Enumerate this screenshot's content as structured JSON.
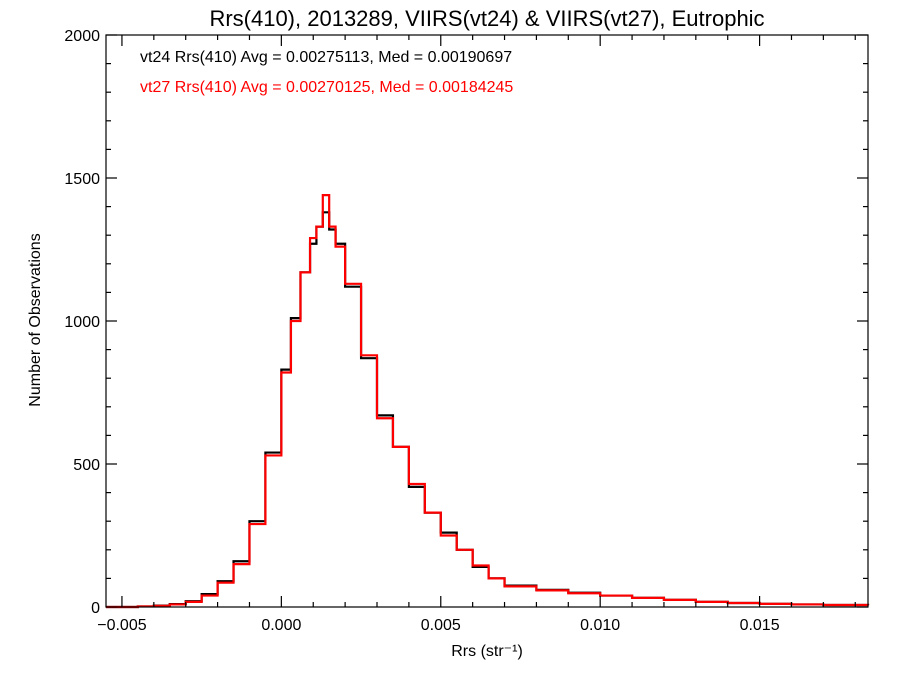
{
  "chart_data": {
    "type": "line",
    "title": "Rrs(410), 2013289, VIIRS(vt24) & VIIRS(vt27), Eutrophic",
    "xlabel": "Rrs (str⁻¹)",
    "ylabel": "Number of Observations",
    "xlim": [
      -0.0055,
      0.0184
    ],
    "ylim": [
      0,
      2000
    ],
    "xticks": [
      -0.005,
      0.0,
      0.005,
      0.01,
      0.015
    ],
    "xtick_labels": [
      "−0.005",
      "0.000",
      "0.005",
      "0.010",
      "0.015"
    ],
    "yticks": [
      0,
      500,
      1000,
      1500,
      2000
    ],
    "ytick_labels": [
      "0",
      "500",
      "1000",
      "1500",
      "2000"
    ],
    "grid": false,
    "x": [
      -0.0055,
      -0.005,
      -0.0045,
      -0.004,
      -0.0035,
      -0.003,
      -0.0025,
      -0.002,
      -0.0015,
      -0.001,
      -0.0005,
      0.0,
      0.0003,
      0.0006,
      0.0009,
      0.0011,
      0.0013,
      0.0015,
      0.0017,
      0.002,
      0.0025,
      0.003,
      0.0035,
      0.004,
      0.0045,
      0.005,
      0.0055,
      0.006,
      0.0065,
      0.007,
      0.008,
      0.009,
      0.01,
      0.011,
      0.012,
      0.013,
      0.014,
      0.015,
      0.016,
      0.017,
      0.0184
    ],
    "series": [
      {
        "name": "vt24",
        "color": "#000000",
        "values": [
          0,
          0,
          2,
          5,
          10,
          20,
          45,
          90,
          160,
          300,
          540,
          830,
          1010,
          1170,
          1270,
          1330,
          1380,
          1320,
          1270,
          1120,
          870,
          670,
          560,
          420,
          330,
          260,
          200,
          140,
          100,
          75,
          60,
          50,
          40,
          32,
          25,
          18,
          14,
          11,
          9,
          7,
          6
        ]
      },
      {
        "name": "vt27",
        "color": "#ff0000",
        "values": [
          0,
          0,
          2,
          4,
          9,
          18,
          40,
          85,
          150,
          290,
          530,
          820,
          1000,
          1170,
          1290,
          1330,
          1440,
          1330,
          1260,
          1130,
          880,
          660,
          560,
          430,
          330,
          250,
          200,
          145,
          100,
          72,
          58,
          48,
          40,
          32,
          25,
          18,
          14,
          11,
          9,
          7,
          6
        ]
      }
    ],
    "annotations": [
      {
        "text": "vt24 Rrs(410) Avg = 0.00275113, Med = 0.00190697",
        "color": "#000000"
      },
      {
        "text": "vt27 Rrs(410) Avg = 0.00270125, Med = 0.00184245",
        "color": "#ff0000"
      }
    ]
  }
}
